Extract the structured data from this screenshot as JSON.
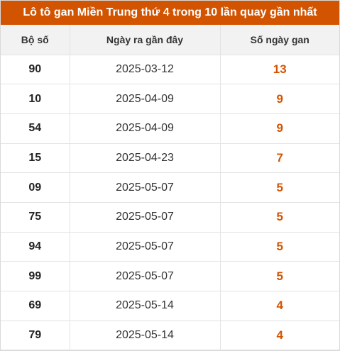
{
  "title": "Lô tô gan Miền Trung thứ 4 trong 10 lần quay gần nhất",
  "colors": {
    "accent": "#d35400",
    "header_bg": "#f2f2f2"
  },
  "table": {
    "headers": [
      "Bộ số",
      "Ngày ra gần đây",
      "Số ngày gan"
    ],
    "rows": [
      {
        "num": "90",
        "date": "2025-03-12",
        "gan": "13"
      },
      {
        "num": "10",
        "date": "2025-04-09",
        "gan": "9"
      },
      {
        "num": "54",
        "date": "2025-04-09",
        "gan": "9"
      },
      {
        "num": "15",
        "date": "2025-04-23",
        "gan": "7"
      },
      {
        "num": "09",
        "date": "2025-05-07",
        "gan": "5"
      },
      {
        "num": "75",
        "date": "2025-05-07",
        "gan": "5"
      },
      {
        "num": "94",
        "date": "2025-05-07",
        "gan": "5"
      },
      {
        "num": "99",
        "date": "2025-05-07",
        "gan": "5"
      },
      {
        "num": "69",
        "date": "2025-05-14",
        "gan": "4"
      },
      {
        "num": "79",
        "date": "2025-05-14",
        "gan": "4"
      }
    ]
  }
}
